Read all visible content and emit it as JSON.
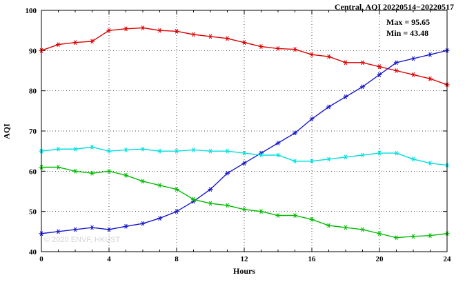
{
  "title": "Central, AQI 20220514−20220517",
  "annotation": {
    "max_label": "Max = 95.65",
    "min_label": "Min = 43.48"
  },
  "watermark": "© 2020 ENVF, HKUST",
  "chart_data": {
    "type": "line",
    "title": "Central, AQI 20220514−20220517",
    "xlabel": "Hours",
    "ylabel": "AQI",
    "xlim": [
      0,
      24
    ],
    "ylim": [
      40,
      100
    ],
    "x_ticks": [
      0,
      4,
      8,
      12,
      16,
      20,
      24
    ],
    "y_ticks": [
      40,
      50,
      60,
      70,
      80,
      90,
      100
    ],
    "grid": "dotted",
    "legend_position": "none",
    "max": 95.65,
    "min": 43.48,
    "x": [
      0,
      1,
      2,
      3,
      4,
      5,
      6,
      7,
      8,
      9,
      10,
      11,
      12,
      13,
      14,
      15,
      16,
      17,
      18,
      19,
      20,
      21,
      22,
      23,
      24
    ],
    "series": [
      {
        "name": "red-series",
        "color": "#dd0000",
        "values": [
          90,
          91.5,
          92,
          92.3,
          95,
          95.4,
          95.65,
          95,
          94.8,
          94,
          93.5,
          93,
          92,
          91,
          90.5,
          90.3,
          89,
          88.5,
          87,
          87,
          86,
          85,
          84,
          83,
          81.5
        ]
      },
      {
        "name": "blue-series",
        "color": "#1818cc",
        "values": [
          44.5,
          45,
          45.5,
          46,
          45.5,
          46.3,
          47,
          48.3,
          50,
          52.5,
          55.5,
          59.5,
          62,
          64.5,
          67,
          69.5,
          73,
          76,
          78.5,
          81,
          84,
          87,
          88,
          89,
          90
        ]
      },
      {
        "name": "cyan-series",
        "color": "#00dede",
        "values": [
          65,
          65.5,
          65.5,
          66,
          65,
          65.3,
          65.5,
          65,
          65,
          65.3,
          65,
          65,
          64.5,
          64,
          64,
          62.5,
          62.5,
          63,
          63.5,
          64,
          64.5,
          64.5,
          63,
          62,
          61.5
        ]
      },
      {
        "name": "green-series",
        "color": "#00bb00",
        "values": [
          61,
          61,
          60,
          59.5,
          60,
          59,
          57.5,
          56.5,
          55.5,
          53,
          52,
          51.5,
          50.5,
          50,
          49,
          49,
          48,
          46.5,
          46,
          45.5,
          44.5,
          43.48,
          43.8,
          44,
          44.5
        ]
      }
    ]
  }
}
